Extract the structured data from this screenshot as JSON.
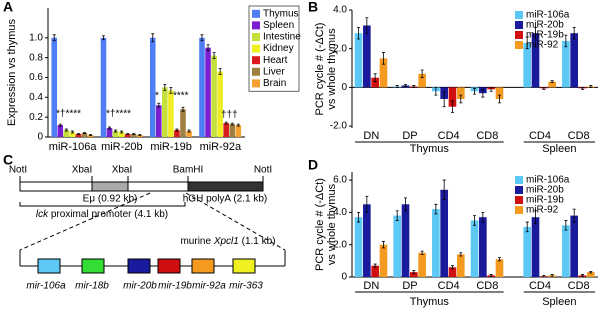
{
  "chart_data": [
    {
      "type": "bar",
      "panel_label": "A",
      "ylabel": "Expression vs thymus",
      "categories": [
        "miR-106a",
        "miR-20b",
        "miR-19b",
        "miR-92a"
      ],
      "ylim": [
        0,
        1.3
      ],
      "yticks": [
        0,
        0.2,
        0.4,
        0.6,
        0.8,
        {
          "value": 1.0,
          "label": "1.0"
        }
      ],
      "series": [
        {
          "name": "Thymus",
          "color": "#4f7df5",
          "values": [
            1.0,
            1.0,
            1.0,
            1.0
          ],
          "errors": [
            0.03,
            0.02,
            0.04,
            0.03
          ]
        },
        {
          "name": "Spleen",
          "color": "#7a1fd1",
          "values": [
            0.12,
            0.09,
            0.32,
            0.9
          ],
          "errors": [
            0.01,
            0.01,
            0.02,
            0.03
          ]
        },
        {
          "name": "Intestine",
          "color": "#c5e03a",
          "values": [
            0.07,
            0.06,
            0.5,
            0.82
          ],
          "errors": [
            0.01,
            0.01,
            0.03,
            0.03
          ]
        },
        {
          "name": "Kidney",
          "color": "#eeee22",
          "values": [
            0.05,
            0.05,
            0.47,
            0.66
          ],
          "errors": [
            0.01,
            0.01,
            0.03,
            0.03
          ]
        },
        {
          "name": "Heart",
          "color": "#d81b1b",
          "values": [
            0.03,
            0.03,
            0.07,
            0.14
          ],
          "errors": [
            0.005,
            0.005,
            0.01,
            0.01
          ]
        },
        {
          "name": "Liver",
          "color": "#a08040",
          "values": [
            0.04,
            0.03,
            0.28,
            0.13
          ],
          "errors": [
            0.005,
            0.005,
            0.02,
            0.01
          ]
        },
        {
          "name": "Brain",
          "color": "#f5a030",
          "values": [
            0.02,
            0.02,
            0.06,
            0.12
          ],
          "errors": [
            0.005,
            0.005,
            0.01,
            0.01
          ]
        }
      ],
      "annotations": [
        "*†****",
        "*†****",
        "*",
        "****",
        "†††"
      ]
    },
    {
      "type": "bar",
      "panel_label": "B",
      "ylabel": [
        "PCR cycle # (-ΔCt)",
        "vs whole thymus"
      ],
      "categories": [
        "DN",
        "DP",
        "CD4",
        "CD8",
        "CD4",
        "CD8"
      ],
      "category_groups": [
        "Thymus",
        "Thymus",
        "Thymus",
        "Thymus",
        "Spleen",
        "Spleen"
      ],
      "ylim": [
        -2.1,
        4
      ],
      "yticks": [
        {
          "value": -2,
          "label": "-2.0"
        },
        0,
        {
          "value": 2,
          "label": "2.0"
        },
        {
          "value": 4,
          "label": "4.0"
        }
      ],
      "series": [
        {
          "name": "miR-106a",
          "color": "#5bc8f5",
          "values": [
            2.8,
            0.05,
            -0.2,
            -0.2,
            2.3,
            2.4
          ],
          "errors": [
            0.3,
            0.05,
            0.2,
            0.15,
            0.3,
            0.3
          ]
        },
        {
          "name": "miR-20b",
          "color": "#1a1a9c",
          "values": [
            3.2,
            0.1,
            -0.6,
            -0.3,
            2.8,
            2.8
          ],
          "errors": [
            0.4,
            0.05,
            0.4,
            0.2,
            0.3,
            0.3
          ]
        },
        {
          "name": "miR-19b",
          "color": "#d01010",
          "values": [
            0.5,
            0.05,
            -1.0,
            -0.1,
            -0.05,
            -0.05
          ],
          "errors": [
            0.2,
            0.05,
            0.3,
            0.1,
            0.05,
            0.05
          ]
        },
        {
          "name": "miR-92",
          "color": "#f59a20",
          "values": [
            1.5,
            0.7,
            -0.6,
            -0.6,
            0.3,
            0.05
          ],
          "errors": [
            0.3,
            0.2,
            0.2,
            0.2,
            0.05,
            0.05
          ]
        }
      ]
    },
    {
      "type": "bar",
      "panel_label": "D",
      "ylabel": [
        "PCR cycle # (-ΔCt)",
        "vs whole thymus"
      ],
      "categories": [
        "DN",
        "DP",
        "CD4",
        "CD8",
        "CD4",
        "CD8"
      ],
      "category_groups": [
        "Thymus",
        "Thymus",
        "Thymus",
        "Thymus",
        "Spleen",
        "Spleen"
      ],
      "ylim": [
        0,
        6.5
      ],
      "yticks": [
        0,
        {
          "value": 2,
          "label": "2.0"
        },
        {
          "value": 4,
          "label": "4.0"
        },
        {
          "value": 6,
          "label": "6.0"
        }
      ],
      "series": [
        {
          "name": "miR-106a",
          "color": "#5bc8f5",
          "values": [
            3.7,
            3.8,
            4.2,
            3.5,
            3.1,
            3.2
          ],
          "errors": [
            0.3,
            0.3,
            0.3,
            0.3,
            0.3,
            0.3
          ]
        },
        {
          "name": "miR-20b",
          "color": "#1a1a9c",
          "values": [
            4.5,
            4.5,
            5.4,
            3.7,
            3.7,
            3.8
          ],
          "errors": [
            0.5,
            0.4,
            0.6,
            0.3,
            0.4,
            0.4
          ]
        },
        {
          "name": "miR-19b",
          "color": "#d01010",
          "values": [
            0.7,
            0.3,
            0.6,
            0.1,
            0.05,
            0.1
          ],
          "errors": [
            0.1,
            0.1,
            0.1,
            0.05,
            0.05,
            0.05
          ]
        },
        {
          "name": "miR-92",
          "color": "#f59a20",
          "values": [
            2.0,
            1.5,
            1.4,
            1.1,
            0.1,
            0.3
          ],
          "errors": [
            0.2,
            0.1,
            0.1,
            0.1,
            0.05,
            0.05
          ]
        }
      ]
    }
  ],
  "diagram": {
    "panel_label": "C",
    "sites": [
      "NotI",
      "XbaI",
      "XbaI",
      "BamHI",
      "NotI"
    ],
    "enhancer": "Eμ (0.92 kb)",
    "polya": "hGH polyA (2.1 kb)",
    "promoter_gene": "lck",
    "promoter_label": "proximal promoter (4.1 kb)",
    "locus_prefix": "murine",
    "locus_gene": "Xpcl1",
    "locus_size": "(1.1 kb)",
    "genes": [
      "mir-106a",
      "mir-18b",
      "mir-20b",
      "mir-19b",
      "mir-92a",
      "mir-363"
    ]
  }
}
